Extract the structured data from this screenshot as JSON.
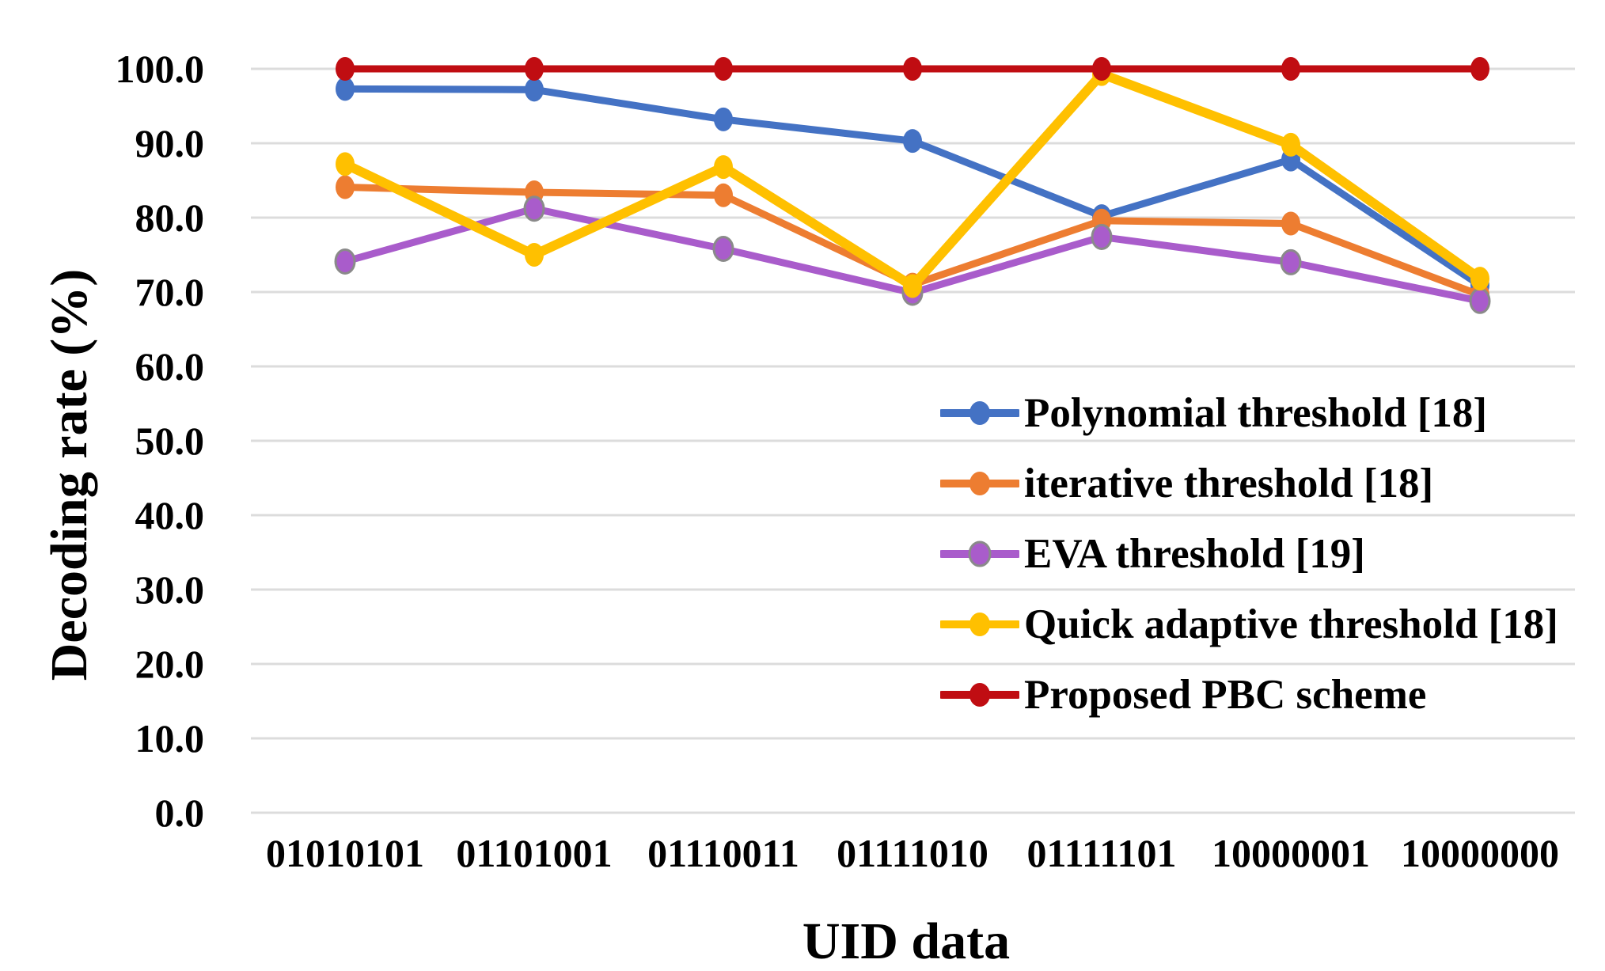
{
  "chart_data": {
    "type": "line",
    "title": "",
    "xlabel": "UID data",
    "ylabel": "Decoding rate (%)",
    "ylim": [
      0,
      100
    ],
    "grid": "horizontal-gridlines",
    "gridline_color": "#dcdcdc",
    "legend_position": "inside-right",
    "background_color": "#ffffff",
    "text_color": "#000000",
    "y_tick_labels": [
      "100.0",
      "90.0",
      "80.0",
      "70.0",
      "60.0",
      "50.0",
      "40.0",
      "30.0",
      "20.0",
      "10.0",
      "0.0"
    ],
    "categories": [
      "01010101",
      "01101001",
      "01110011",
      "01111010",
      "01111101",
      "10000001",
      "10000000"
    ],
    "series": [
      {
        "name": "Polynomial threshold [18]",
        "color": "#4472c4",
        "marker_outline": "none",
        "values": [
          97.3,
          97.2,
          93.2,
          90.3,
          80.2,
          87.8,
          70.9
        ]
      },
      {
        "name": "iterative threshold [18]",
        "color": "#ed7d31",
        "marker_outline": "none",
        "values": [
          84.1,
          83.4,
          83.0,
          71.0,
          79.6,
          79.2,
          69.6
        ]
      },
      {
        "name": "EVA threshold [19]",
        "color": "#a95ccb",
        "marker_outline": "#8a8a8a",
        "values": [
          74.1,
          81.2,
          75.8,
          69.9,
          77.4,
          74.0,
          68.8
        ]
      },
      {
        "name": "Quick adaptive threshold [18]",
        "color": "#ffc000",
        "marker_outline": "none",
        "values": [
          87.2,
          75.0,
          86.8,
          70.8,
          99.3,
          89.8,
          71.8
        ]
      },
      {
        "name": "Proposed PBC scheme",
        "color": "#c00d12",
        "marker_outline": "none",
        "values": [
          100.0,
          100.0,
          100.0,
          100.0,
          100.0,
          100.0,
          100.0
        ]
      }
    ]
  }
}
